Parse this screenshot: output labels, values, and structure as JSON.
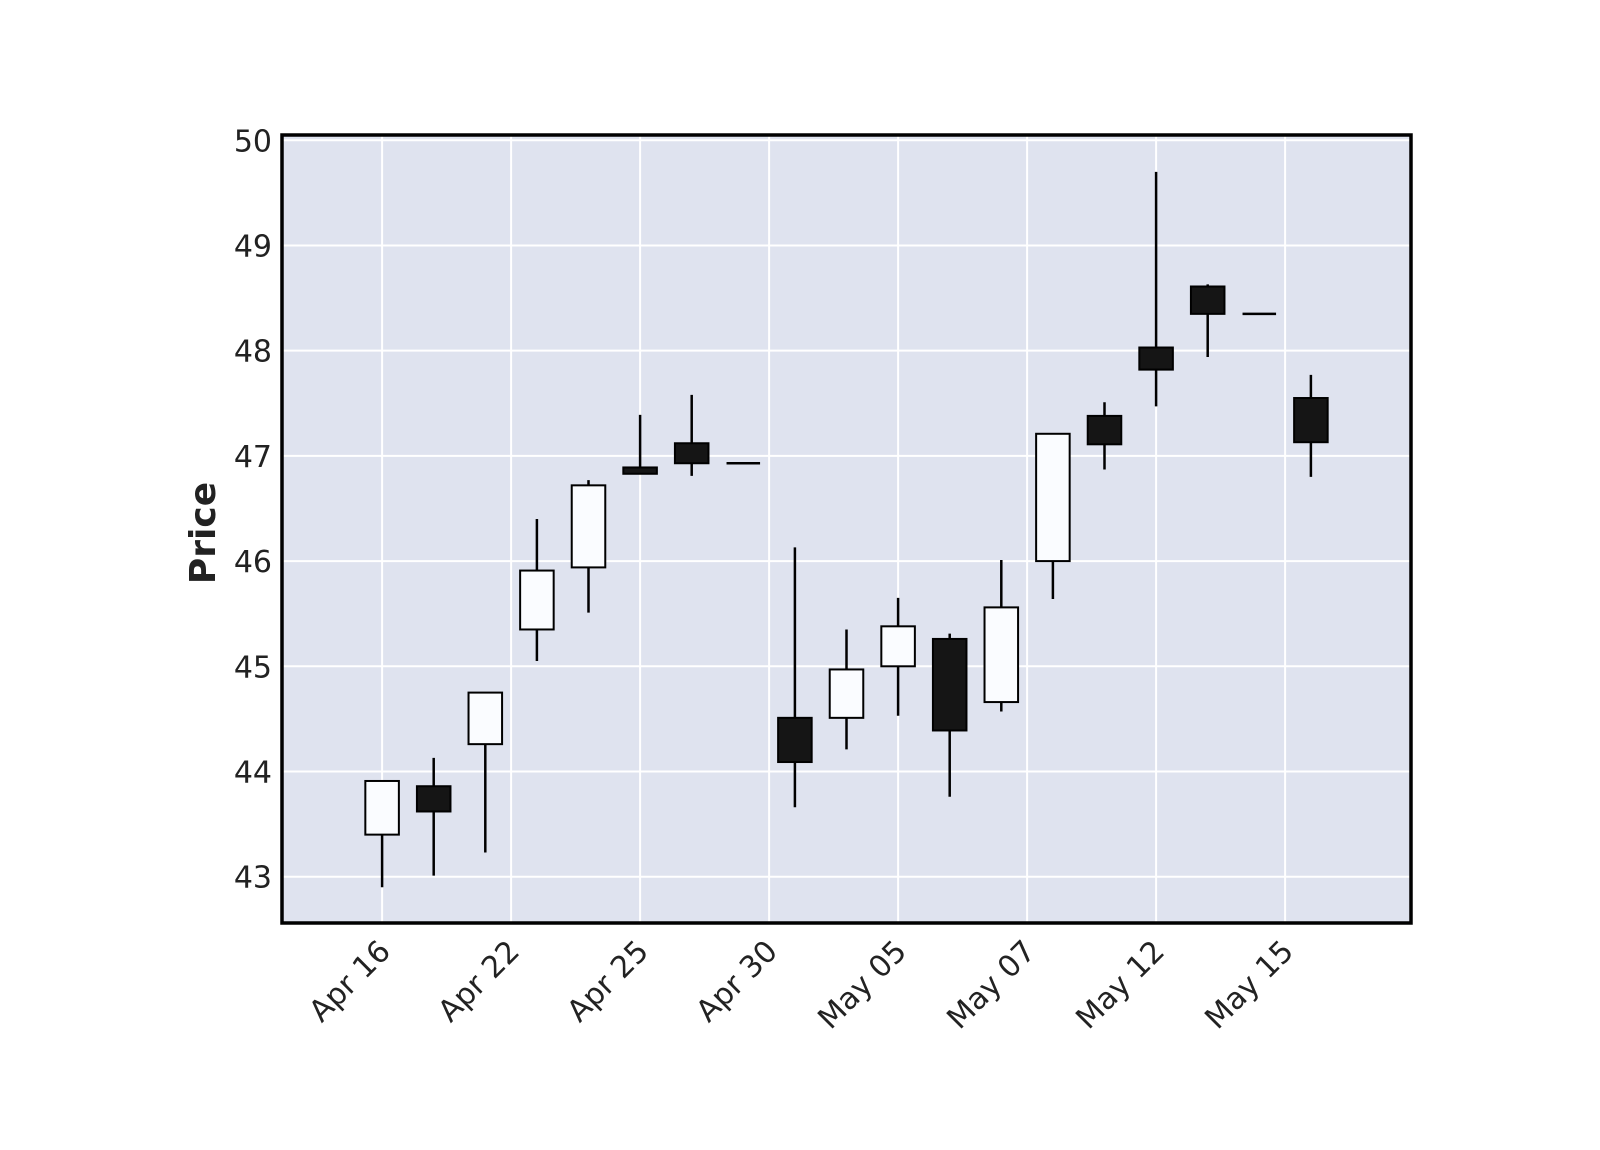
{
  "chart_data": {
    "type": "candlestick",
    "ylabel": "Price",
    "x": [
      0,
      1,
      2,
      3,
      4,
      5,
      6,
      7,
      8,
      9,
      10,
      11,
      12,
      13,
      14,
      15,
      16,
      17,
      18
    ],
    "open": [
      43.4,
      43.86,
      44.26,
      45.35,
      45.94,
      46.89,
      47.12,
      46.93,
      44.51,
      44.51,
      45.0,
      45.26,
      44.66,
      46.0,
      47.38,
      48.03,
      48.61,
      48.35,
      47.55
    ],
    "high": [
      43.91,
      44.13,
      44.75,
      46.4,
      46.77,
      47.39,
      47.58,
      46.93,
      46.13,
      45.35,
      45.65,
      45.31,
      46.01,
      47.21,
      47.51,
      49.7,
      48.63,
      48.35,
      47.77
    ],
    "low": [
      42.9,
      43.01,
      43.23,
      45.05,
      45.51,
      46.83,
      46.81,
      46.93,
      43.66,
      44.21,
      44.53,
      43.76,
      44.57,
      45.64,
      46.87,
      47.47,
      47.94,
      48.35,
      46.8
    ],
    "close": [
      43.91,
      43.62,
      44.75,
      45.91,
      46.72,
      46.83,
      46.93,
      46.93,
      44.09,
      44.97,
      45.38,
      44.39,
      45.56,
      47.21,
      47.11,
      47.82,
      48.35,
      48.35,
      47.13
    ],
    "up_color": "#fafcff",
    "down_color": "#151515",
    "background": "#dfe3ef",
    "grid": true,
    "xlim": [
      -1.94,
      19.94
    ],
    "xticks": [
      {
        "value": 0,
        "label": "Apr 16"
      },
      {
        "value": 2.5,
        "label": "Apr 22"
      },
      {
        "value": 5,
        "label": "Apr 25"
      },
      {
        "value": 7.5,
        "label": "Apr 30"
      },
      {
        "value": 10,
        "label": "May 05"
      },
      {
        "value": 12.5,
        "label": "May 07"
      },
      {
        "value": 15,
        "label": "May 12"
      },
      {
        "value": 17.5,
        "label": "May 15"
      }
    ],
    "ylim": [
      42.56,
      50.05
    ],
    "yticks": [
      43,
      44,
      45,
      46,
      47,
      48,
      49,
      50
    ]
  }
}
